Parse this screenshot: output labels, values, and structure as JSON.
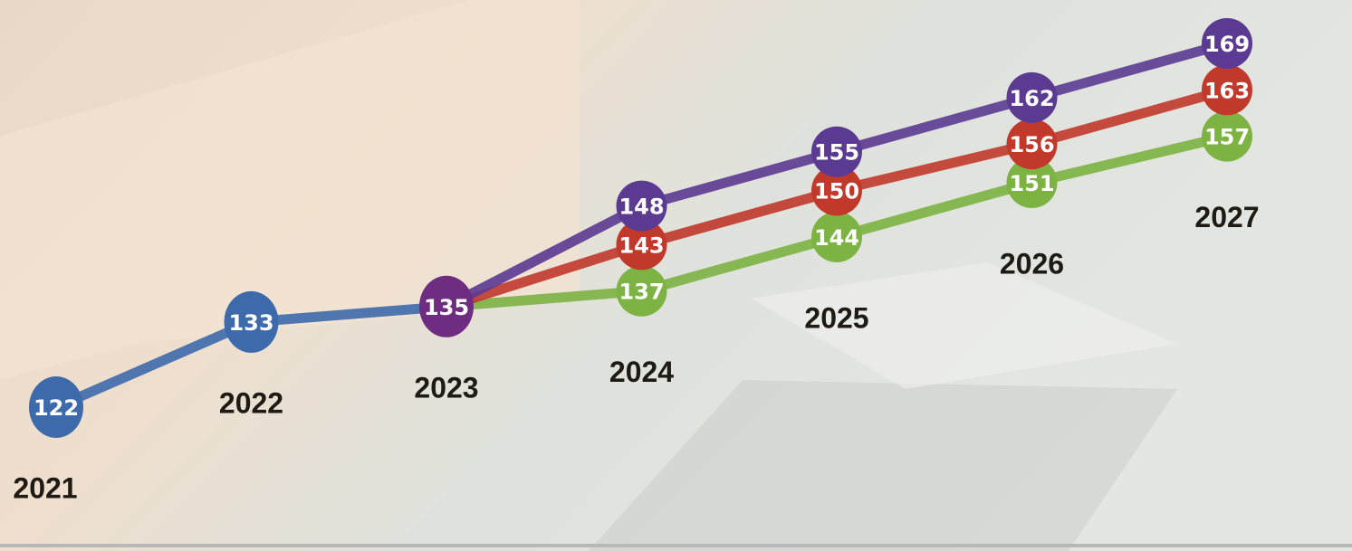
{
  "chart_data": {
    "type": "line",
    "categories": [
      "2021",
      "2022",
      "2023",
      "2024",
      "2025",
      "2026",
      "2027"
    ],
    "series": [
      {
        "color": "#3d6aab",
        "point_colors": [
          "#3d6aab",
          "#3d6aab",
          "#6e2d80"
        ],
        "values": [
          122,
          133,
          135,
          null,
          null,
          null,
          null
        ]
      },
      {
        "color": "#7cb342",
        "values": [
          null,
          null,
          null,
          137,
          144,
          151,
          157
        ]
      },
      {
        "color": "#c0392b",
        "values": [
          null,
          null,
          null,
          143,
          150,
          156,
          163
        ]
      },
      {
        "color": "#5b3a91",
        "values": [
          null,
          null,
          null,
          148,
          155,
          162,
          169
        ]
      }
    ]
  }
}
